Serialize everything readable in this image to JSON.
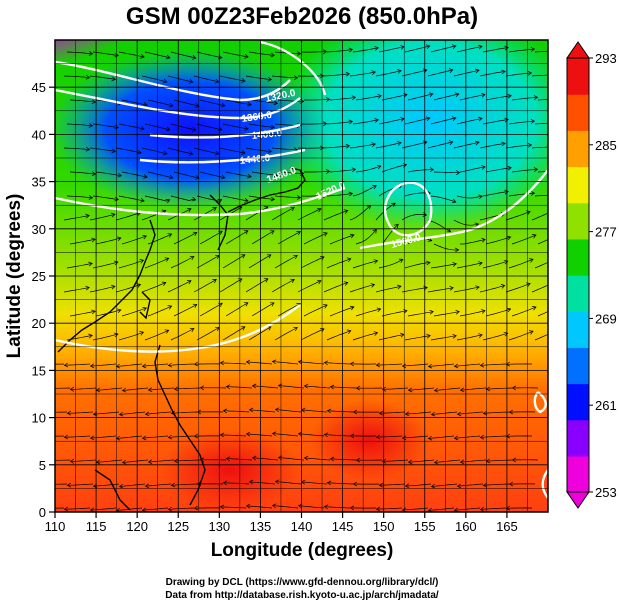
{
  "title": "GSM 00Z23Feb2026 (850.0hPa)",
  "x_axis": {
    "label": "Longitude (degrees)",
    "range": [
      110,
      170
    ],
    "ticks": [
      "110",
      "115",
      "120",
      "125",
      "130",
      "135",
      "140",
      "145",
      "150",
      "155",
      "160",
      "165"
    ]
  },
  "y_axis": {
    "label": "Latitude  (degrees)",
    "range": [
      0,
      50
    ],
    "ticks": [
      "0",
      "5",
      "10",
      "15",
      "20",
      "25",
      "30",
      "35",
      "40",
      "45"
    ]
  },
  "colorbar": {
    "range": [
      253,
      293
    ],
    "labels": [
      "293",
      "285",
      "277",
      "269",
      "261",
      "253"
    ],
    "palette": [
      "#ee00dd",
      "#8a00ff",
      "#0010ff",
      "#0070ff",
      "#00c8ff",
      "#00e0a0",
      "#10d000",
      "#90e000",
      "#f0f000",
      "#ffa000",
      "#ff5000",
      "#ee1010"
    ]
  },
  "contour_labels": [
    "1320.0",
    "1360.0",
    "1400.0",
    "1440.0",
    "1480.0",
    "1520.0",
    "1560.0"
  ],
  "credits": {
    "line1": "Drawing by DCL (https://www.gfd-dennou.org/library/dcl/)",
    "line2": "Data from http://database.rish.kyoto-u.ac.jp/arch/jmadata/"
  }
}
